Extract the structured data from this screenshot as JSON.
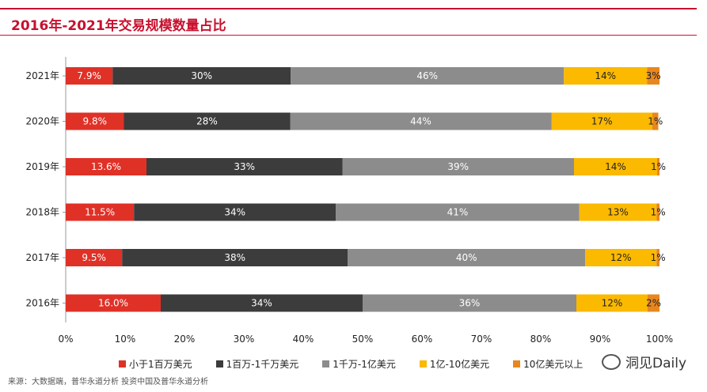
{
  "header": {
    "title": "2016年-2021年交易规模数量占比"
  },
  "source": "来源：大数据端，普华永道分析 投资中国及普华永道分析",
  "brand": {
    "name": "洞见Daily"
  },
  "chart_data": {
    "type": "bar",
    "orientation": "horizontal",
    "stacked": true,
    "title": "2016年-2021年交易规模数量占比",
    "categories": [
      "2021年",
      "2020年",
      "2019年",
      "2018年",
      "2017年",
      "2016年"
    ],
    "xlim": [
      0,
      100
    ],
    "x_ticks": [
      "0%",
      "10%",
      "20%",
      "30%",
      "40%",
      "50%",
      "60%",
      "70%",
      "80%",
      "90%",
      "100%"
    ],
    "grid": false,
    "legend_position": "bottom",
    "series": [
      {
        "name": "小于1百万美元",
        "color": "#e03127",
        "values": [
          7.9,
          9.8,
          13.6,
          11.5,
          9.5,
          16.0
        ],
        "labels": [
          "7.9%",
          "9.8%",
          "13.6%",
          "11.5%",
          "9.5%",
          "16.0%"
        ]
      },
      {
        "name": "1百万-1千万美元",
        "color": "#3c3c3c",
        "values": [
          30,
          28,
          33,
          34,
          38,
          34
        ],
        "labels": [
          "30%",
          "28%",
          "33%",
          "34%",
          "38%",
          "34%"
        ]
      },
      {
        "name": "1千万-1亿美元",
        "color": "#8c8c8c",
        "values": [
          46,
          44,
          39,
          41,
          40,
          36
        ],
        "labels": [
          "46%",
          "44%",
          "39%",
          "41%",
          "40%",
          "36%"
        ]
      },
      {
        "name": "1亿-10亿美元",
        "color": "#fbb900",
        "values": [
          14,
          17,
          14,
          13,
          12,
          12
        ],
        "labels": [
          "14%",
          "17%",
          "14%",
          "13%",
          "12%",
          "12%"
        ]
      },
      {
        "name": "10亿美元以上",
        "color": "#e8871e",
        "values": [
          3,
          1,
          1,
          1,
          1,
          2
        ],
        "labels": [
          "3%",
          "1%",
          "1%",
          "1%",
          "1%",
          "2%"
        ]
      }
    ]
  }
}
